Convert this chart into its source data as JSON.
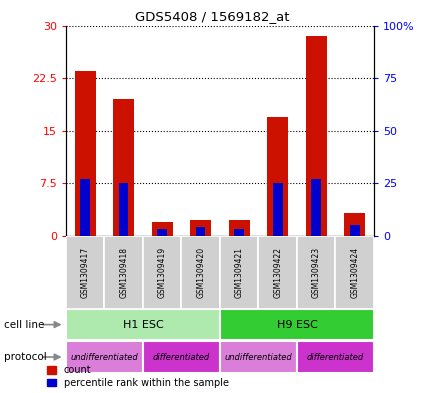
{
  "title": "GDS5408 / 1569182_at",
  "samples": [
    "GSM1309417",
    "GSM1309418",
    "GSM1309419",
    "GSM1309420",
    "GSM1309421",
    "GSM1309422",
    "GSM1309423",
    "GSM1309424"
  ],
  "count_values": [
    23.5,
    19.5,
    2.0,
    2.3,
    2.2,
    17.0,
    28.5,
    3.2
  ],
  "percentile_values": [
    27,
    25,
    3,
    4,
    3,
    25,
    27,
    5
  ],
  "ylim_left": [
    0,
    30
  ],
  "ylim_right": [
    0,
    100
  ],
  "yticks_left": [
    0,
    7.5,
    15,
    22.5,
    30
  ],
  "yticks_right": [
    0,
    25,
    50,
    75,
    100
  ],
  "ytick_labels_left": [
    "0",
    "7.5",
    "15",
    "22.5",
    "30"
  ],
  "ytick_labels_right": [
    "0",
    "25",
    "50",
    "75",
    "100%"
  ],
  "cell_line_groups": [
    {
      "label": "H1 ESC",
      "start": 0,
      "end": 4,
      "color": "#aeeaae"
    },
    {
      "label": "H9 ESC",
      "start": 4,
      "end": 8,
      "color": "#33cc33"
    }
  ],
  "protocol_groups": [
    {
      "label": "undifferentiated",
      "start": 0,
      "end": 2,
      "color": "#da7eda"
    },
    {
      "label": "differentiated",
      "start": 2,
      "end": 4,
      "color": "#cc33cc"
    },
    {
      "label": "undifferentiated",
      "start": 4,
      "end": 6,
      "color": "#da7eda"
    },
    {
      "label": "differentiated",
      "start": 6,
      "end": 8,
      "color": "#cc33cc"
    }
  ],
  "bar_color_red": "#cc1100",
  "bar_color_blue": "#0000cc",
  "red_bar_width": 0.55,
  "blue_bar_width": 0.25,
  "cell_line_label": "cell line",
  "protocol_label": "protocol",
  "legend_count": "count",
  "legend_percentile": "percentile rank within the sample",
  "sample_box_color": "#d0d0d0"
}
